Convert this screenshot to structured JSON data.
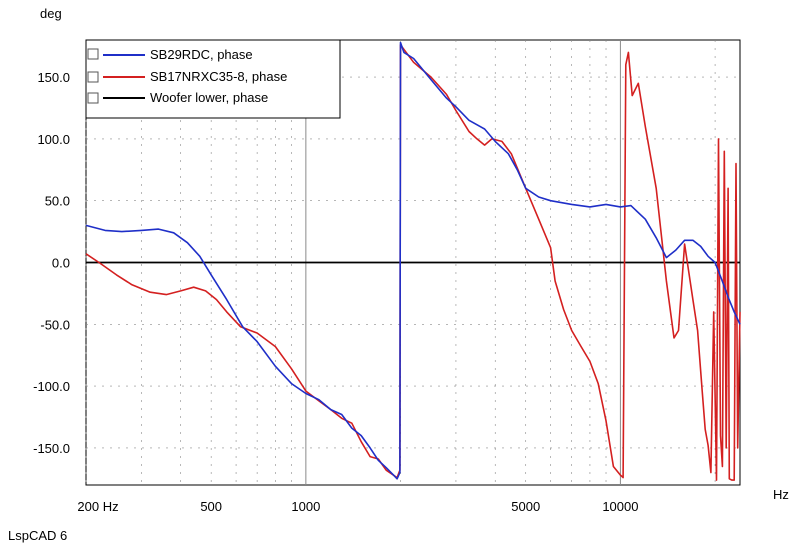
{
  "app": {
    "footer_label": "LspCAD 6"
  },
  "chart_data": {
    "type": "line",
    "x_scale": "log",
    "xlim": [
      200,
      24000
    ],
    "ylim": [
      -180,
      180
    ],
    "xlabel": "Hz",
    "ylabel": "deg",
    "grid": true,
    "legend_position": "top-left",
    "x_ticks": [
      {
        "value": 200,
        "label": "200 Hz"
      },
      {
        "value": 500,
        "label": "500"
      },
      {
        "value": 1000,
        "label": "1000"
      },
      {
        "value": 5000,
        "label": "5000"
      },
      {
        "value": 10000,
        "label": "10000"
      }
    ],
    "y_ticks": [
      {
        "value": 150,
        "label": "150.0"
      },
      {
        "value": 100,
        "label": "100.0"
      },
      {
        "value": 50,
        "label": "50.0"
      },
      {
        "value": 0,
        "label": "0.0"
      },
      {
        "value": -50,
        "label": "-50.0"
      },
      {
        "value": -100,
        "label": "-100.0"
      },
      {
        "value": -150,
        "label": "-150.0"
      }
    ],
    "series": [
      {
        "name": "SB29RDC, phase",
        "color": "#1f2fc8",
        "points": [
          [
            200,
            30
          ],
          [
            230,
            26
          ],
          [
            260,
            25
          ],
          [
            300,
            26
          ],
          [
            340,
            27
          ],
          [
            380,
            24
          ],
          [
            420,
            16
          ],
          [
            460,
            5
          ],
          [
            500,
            -10
          ],
          [
            560,
            -30
          ],
          [
            630,
            -52
          ],
          [
            700,
            -64
          ],
          [
            800,
            -84
          ],
          [
            900,
            -98
          ],
          [
            1000,
            -106
          ],
          [
            1100,
            -111
          ],
          [
            1200,
            -119
          ],
          [
            1300,
            -123
          ],
          [
            1400,
            -134
          ],
          [
            1500,
            -140
          ],
          [
            1600,
            -150
          ],
          [
            1700,
            -160
          ],
          [
            1800,
            -166
          ],
          [
            1900,
            -172
          ],
          [
            1950,
            -175
          ],
          [
            1990,
            -170
          ],
          [
            2000,
            178
          ],
          [
            2050,
            170
          ],
          [
            2200,
            165
          ],
          [
            2500,
            148
          ],
          [
            2800,
            133
          ],
          [
            3000,
            126
          ],
          [
            3300,
            115
          ],
          [
            3700,
            108
          ],
          [
            4000,
            98
          ],
          [
            4400,
            88
          ],
          [
            4700,
            75
          ],
          [
            5000,
            60
          ],
          [
            5500,
            53
          ],
          [
            6000,
            50
          ],
          [
            7000,
            47
          ],
          [
            8000,
            45
          ],
          [
            9000,
            47
          ],
          [
            10000,
            45
          ],
          [
            10800,
            46
          ],
          [
            12000,
            35
          ],
          [
            13000,
            20
          ],
          [
            14000,
            4
          ],
          [
            15000,
            10
          ],
          [
            16000,
            18
          ],
          [
            17000,
            18
          ],
          [
            18000,
            13
          ],
          [
            19000,
            5
          ],
          [
            20000,
            0
          ],
          [
            21000,
            -14
          ],
          [
            22000,
            -28
          ],
          [
            23000,
            -40
          ],
          [
            24000,
            -50
          ]
        ]
      },
      {
        "name": "SB17NRXC35-8, phase",
        "color": "#d42020",
        "points": [
          [
            200,
            7
          ],
          [
            220,
            0
          ],
          [
            250,
            -10
          ],
          [
            280,
            -18
          ],
          [
            320,
            -24
          ],
          [
            360,
            -26
          ],
          [
            400,
            -23
          ],
          [
            440,
            -20
          ],
          [
            480,
            -23
          ],
          [
            520,
            -30
          ],
          [
            560,
            -40
          ],
          [
            620,
            -52
          ],
          [
            700,
            -57
          ],
          [
            800,
            -68
          ],
          [
            900,
            -86
          ],
          [
            1000,
            -104
          ],
          [
            1100,
            -112
          ],
          [
            1200,
            -119
          ],
          [
            1300,
            -126
          ],
          [
            1400,
            -130
          ],
          [
            1500,
            -145
          ],
          [
            1600,
            -157
          ],
          [
            1700,
            -159
          ],
          [
            1800,
            -168
          ],
          [
            1950,
            -174
          ],
          [
            1990,
            -168
          ],
          [
            2000,
            176
          ],
          [
            2200,
            162
          ],
          [
            2500,
            150
          ],
          [
            2800,
            136
          ],
          [
            3000,
            123
          ],
          [
            3300,
            106
          ],
          [
            3500,
            100
          ],
          [
            3700,
            95
          ],
          [
            3900,
            100
          ],
          [
            4200,
            98
          ],
          [
            4500,
            88
          ],
          [
            5000,
            60
          ],
          [
            5500,
            35
          ],
          [
            6000,
            12
          ],
          [
            6200,
            -15
          ],
          [
            6600,
            -38
          ],
          [
            7000,
            -55
          ],
          [
            7500,
            -68
          ],
          [
            8000,
            -80
          ],
          [
            8500,
            -98
          ],
          [
            9000,
            -128
          ],
          [
            9500,
            -165
          ],
          [
            10000,
            -172
          ],
          [
            10200,
            -174
          ],
          [
            10400,
            160
          ],
          [
            10600,
            170
          ],
          [
            10900,
            135
          ],
          [
            11400,
            145
          ],
          [
            12000,
            110
          ],
          [
            13000,
            60
          ],
          [
            14000,
            -15
          ],
          [
            14800,
            -61
          ],
          [
            15300,
            -55
          ],
          [
            16000,
            15
          ],
          [
            17000,
            -30
          ],
          [
            17600,
            -55
          ],
          [
            18200,
            -104
          ],
          [
            18600,
            -135
          ],
          [
            19000,
            -148
          ],
          [
            19400,
            -170
          ],
          [
            19800,
            -40
          ],
          [
            20200,
            -176
          ],
          [
            20500,
            100
          ],
          [
            20800,
            -140
          ],
          [
            21100,
            -165
          ],
          [
            21400,
            90
          ],
          [
            21700,
            -150
          ],
          [
            22000,
            60
          ],
          [
            22200,
            -175
          ],
          [
            22600,
            -176
          ],
          [
            23000,
            -176
          ],
          [
            23300,
            80
          ],
          [
            23600,
            -150
          ],
          [
            24000,
            -40
          ]
        ]
      },
      {
        "name": "Woofer lower, phase",
        "color": "#000000",
        "points": [
          [
            200,
            0
          ],
          [
            24000,
            0
          ]
        ]
      }
    ]
  }
}
